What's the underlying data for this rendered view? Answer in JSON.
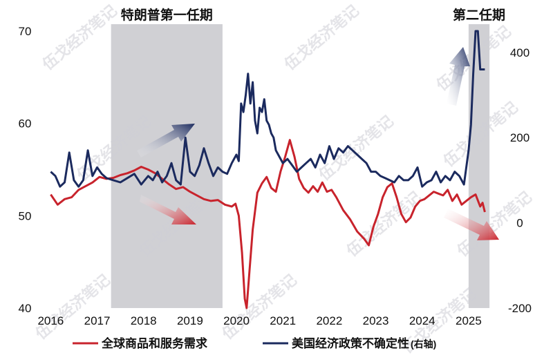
{
  "chart_data": {
    "type": "line",
    "title": "",
    "shaded_periods": [
      {
        "label": "特朗普第一任期",
        "x_start": 2017.3,
        "x_end": 2019.7
      },
      {
        "label": "第二任期",
        "x_start": 2025.0,
        "x_end": 2025.45
      }
    ],
    "x_axis": {
      "ticks": [
        "2016",
        "2017",
        "2018",
        "2019",
        "2020",
        "2021",
        "2022",
        "2023",
        "2024",
        "2025"
      ],
      "range": [
        2015.95,
        2025.85
      ]
    },
    "y_left": {
      "ticks": [
        "40",
        "50",
        "60",
        "70"
      ],
      "range": [
        40,
        70
      ]
    },
    "y_right": {
      "ticks": [
        "-200",
        "0",
        "200",
        "400"
      ],
      "range": [
        -200,
        450
      ]
    },
    "legend_position": "bottom",
    "series": [
      {
        "name": "全球商品和服务需求",
        "axis": "left",
        "color": "#c8232c",
        "x": [
          2016.0,
          2016.15,
          2016.3,
          2016.45,
          2016.6,
          2016.75,
          2016.9,
          2017.05,
          2017.2,
          2017.35,
          2017.5,
          2017.65,
          2017.8,
          2017.95,
          2018.1,
          2018.25,
          2018.4,
          2018.55,
          2018.7,
          2018.85,
          2019.0,
          2019.15,
          2019.3,
          2019.45,
          2019.6,
          2019.75,
          2019.9,
          2019.98,
          2020.05,
          2020.12,
          2020.18,
          2020.22,
          2020.28,
          2020.35,
          2020.45,
          2020.55,
          2020.65,
          2020.75,
          2020.85,
          2020.95,
          2021.05,
          2021.15,
          2021.25,
          2021.35,
          2021.45,
          2021.55,
          2021.65,
          2021.75,
          2021.85,
          2021.95,
          2022.05,
          2022.15,
          2022.3,
          2022.45,
          2022.6,
          2022.75,
          2022.85,
          2022.95,
          2023.05,
          2023.15,
          2023.25,
          2023.35,
          2023.45,
          2023.55,
          2023.65,
          2023.75,
          2023.85,
          2023.95,
          2024.05,
          2024.15,
          2024.25,
          2024.35,
          2024.45,
          2024.55,
          2024.65,
          2024.75,
          2024.85,
          2024.95,
          2025.05,
          2025.15,
          2025.25,
          2025.3,
          2025.35
        ],
        "values": [
          52.3,
          51.2,
          51.8,
          52.0,
          52.8,
          53.2,
          53.6,
          54.2,
          54.0,
          54.1,
          54.4,
          54.6,
          54.9,
          55.3,
          55.0,
          54.6,
          54.0,
          53.4,
          52.9,
          53.1,
          52.6,
          52.2,
          51.8,
          51.6,
          51.7,
          51.2,
          51.0,
          51.3,
          50.0,
          46.0,
          41.0,
          40.0,
          44.0,
          48.5,
          52.5,
          53.5,
          54.2,
          53.0,
          52.6,
          54.8,
          56.4,
          58.2,
          56.4,
          54.0,
          53.0,
          52.5,
          53.2,
          52.6,
          53.6,
          52.6,
          52.8,
          52.0,
          50.6,
          49.6,
          48.3,
          47.5,
          46.8,
          48.8,
          50.2,
          52.0,
          53.1,
          53.5,
          52.0,
          50.2,
          49.3,
          49.8,
          51.0,
          51.6,
          51.8,
          52.2,
          52.6,
          52.4,
          52.2,
          52.8,
          51.6,
          52.3,
          51.2,
          51.6,
          52.0,
          52.3,
          51.0,
          51.4,
          50.4
        ]
      },
      {
        "name": "美国经济政策不确定性",
        "axis": "right",
        "color": "#1b2a5e",
        "x": [
          2016.0,
          2016.1,
          2016.2,
          2016.3,
          2016.4,
          2016.5,
          2016.6,
          2016.7,
          2016.8,
          2016.9,
          2017.0,
          2017.1,
          2017.2,
          2017.35,
          2017.5,
          2017.65,
          2017.8,
          2017.95,
          2018.1,
          2018.2,
          2018.3,
          2018.4,
          2018.5,
          2018.6,
          2018.7,
          2018.8,
          2018.9,
          2019.0,
          2019.1,
          2019.2,
          2019.3,
          2019.4,
          2019.5,
          2019.6,
          2019.7,
          2019.8,
          2019.9,
          2020.0,
          2020.05,
          2020.1,
          2020.15,
          2020.2,
          2020.25,
          2020.3,
          2020.35,
          2020.4,
          2020.45,
          2020.5,
          2020.55,
          2020.6,
          2020.65,
          2020.7,
          2020.75,
          2020.8,
          2020.85,
          2020.9,
          2020.95,
          2021.0,
          2021.1,
          2021.2,
          2021.3,
          2021.4,
          2021.5,
          2021.6,
          2021.7,
          2021.8,
          2021.9,
          2022.0,
          2022.1,
          2022.2,
          2022.3,
          2022.4,
          2022.5,
          2022.6,
          2022.7,
          2022.8,
          2022.9,
          2023.0,
          2023.1,
          2023.2,
          2023.3,
          2023.4,
          2023.5,
          2023.6,
          2023.7,
          2023.8,
          2023.9,
          2024.0,
          2024.1,
          2024.2,
          2024.3,
          2024.4,
          2024.5,
          2024.6,
          2024.7,
          2024.8,
          2024.9,
          2025.0,
          2025.05,
          2025.1,
          2025.15,
          2025.2,
          2025.25,
          2025.3,
          2025.35
        ],
        "values": [
          120,
          110,
          85,
          95,
          165,
          100,
          85,
          100,
          170,
          110,
          130,
          115,
          105,
          100,
          95,
          105,
          115,
          90,
          110,
          100,
          120,
          95,
          110,
          140,
          100,
          90,
          200,
          120,
          110,
          135,
          175,
          140,
          110,
          130,
          120,
          115,
          140,
          160,
          145,
          280,
          260,
          300,
          350,
          280,
          330,
          240,
          210,
          270,
          260,
          290,
          240,
          230,
          210,
          200,
          170,
          160,
          150,
          140,
          150,
          135,
          120,
          130,
          140,
          150,
          130,
          160,
          140,
          180,
          150,
          175,
          165,
          180,
          170,
          160,
          150,
          140,
          120,
          120,
          110,
          105,
          100,
          95,
          110,
          100,
          100,
          110,
          130,
          85,
          95,
          100,
          120,
          95,
          110,
          100,
          120,
          110,
          90,
          170,
          230,
          350,
          450,
          450,
          360,
          360,
          360
        ]
      }
    ]
  },
  "legend": {
    "series1_label": "全球商品和服务需求",
    "series2_label": "美国经济政策不确定性",
    "series2_suffix": "(右轴)"
  },
  "watermark": "伍戈经济笔记",
  "colors": {
    "red": "#c8232c",
    "navy": "#1b2a5e",
    "shade": "#d0d0d4"
  }
}
